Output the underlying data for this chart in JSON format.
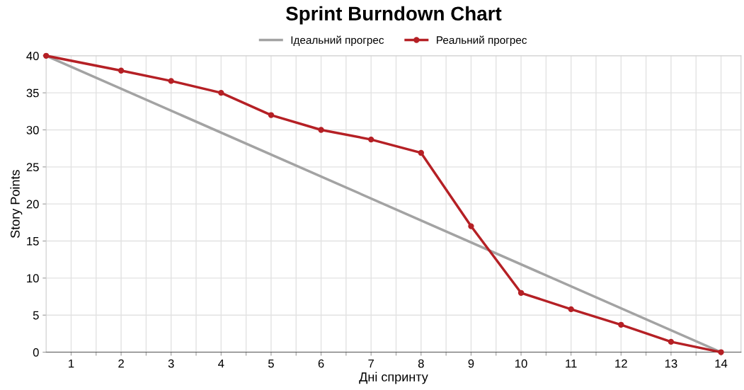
{
  "chart_data": {
    "type": "line",
    "title": "Sprint Burndown Chart",
    "xlabel": "Дні спринту",
    "ylabel": "Story Points",
    "series": [
      {
        "name": "Ідеальний прогрес",
        "color": "#a3a3a3",
        "x": [
          0.5,
          14
        ],
        "values": [
          40,
          0
        ],
        "marker": "none"
      },
      {
        "name": "Реальний прогрес",
        "color": "#b52025",
        "x": [
          0.5,
          2,
          3,
          4,
          5,
          6,
          7,
          8,
          9,
          10,
          11,
          12,
          13,
          14
        ],
        "values": [
          40,
          38,
          36.6,
          35,
          32,
          30,
          28.7,
          26.9,
          17,
          8,
          5.8,
          3.7,
          1.4,
          0
        ],
        "marker": "circle"
      }
    ],
    "xlim": [
      0.5,
      14.4
    ],
    "xticks": [
      1,
      {
        "value": 1.5,
        "label": null
      },
      2,
      {
        "value": 2.5,
        "label": null
      },
      3,
      {
        "value": 3.5,
        "label": null
      },
      4,
      {
        "value": 4.5,
        "label": null
      },
      5,
      {
        "value": 5.5,
        "label": null
      },
      6,
      {
        "value": 6.5,
        "label": null
      },
      7,
      {
        "value": 7.5,
        "label": null
      },
      8,
      {
        "value": 8.5,
        "label": null
      },
      9,
      {
        "value": 9.5,
        "label": null
      },
      10,
      {
        "value": 10.5,
        "label": null
      },
      11,
      {
        "value": 11.5,
        "label": null
      },
      12,
      {
        "value": 12.5,
        "label": null
      },
      13,
      {
        "value": 13.5,
        "label": null
      },
      14
    ],
    "ylim": [
      0,
      40
    ],
    "yticks": [
      0,
      5,
      10,
      15,
      20,
      25,
      30,
      35,
      40
    ],
    "grid": true,
    "legend": "top",
    "line_style": "solid"
  }
}
